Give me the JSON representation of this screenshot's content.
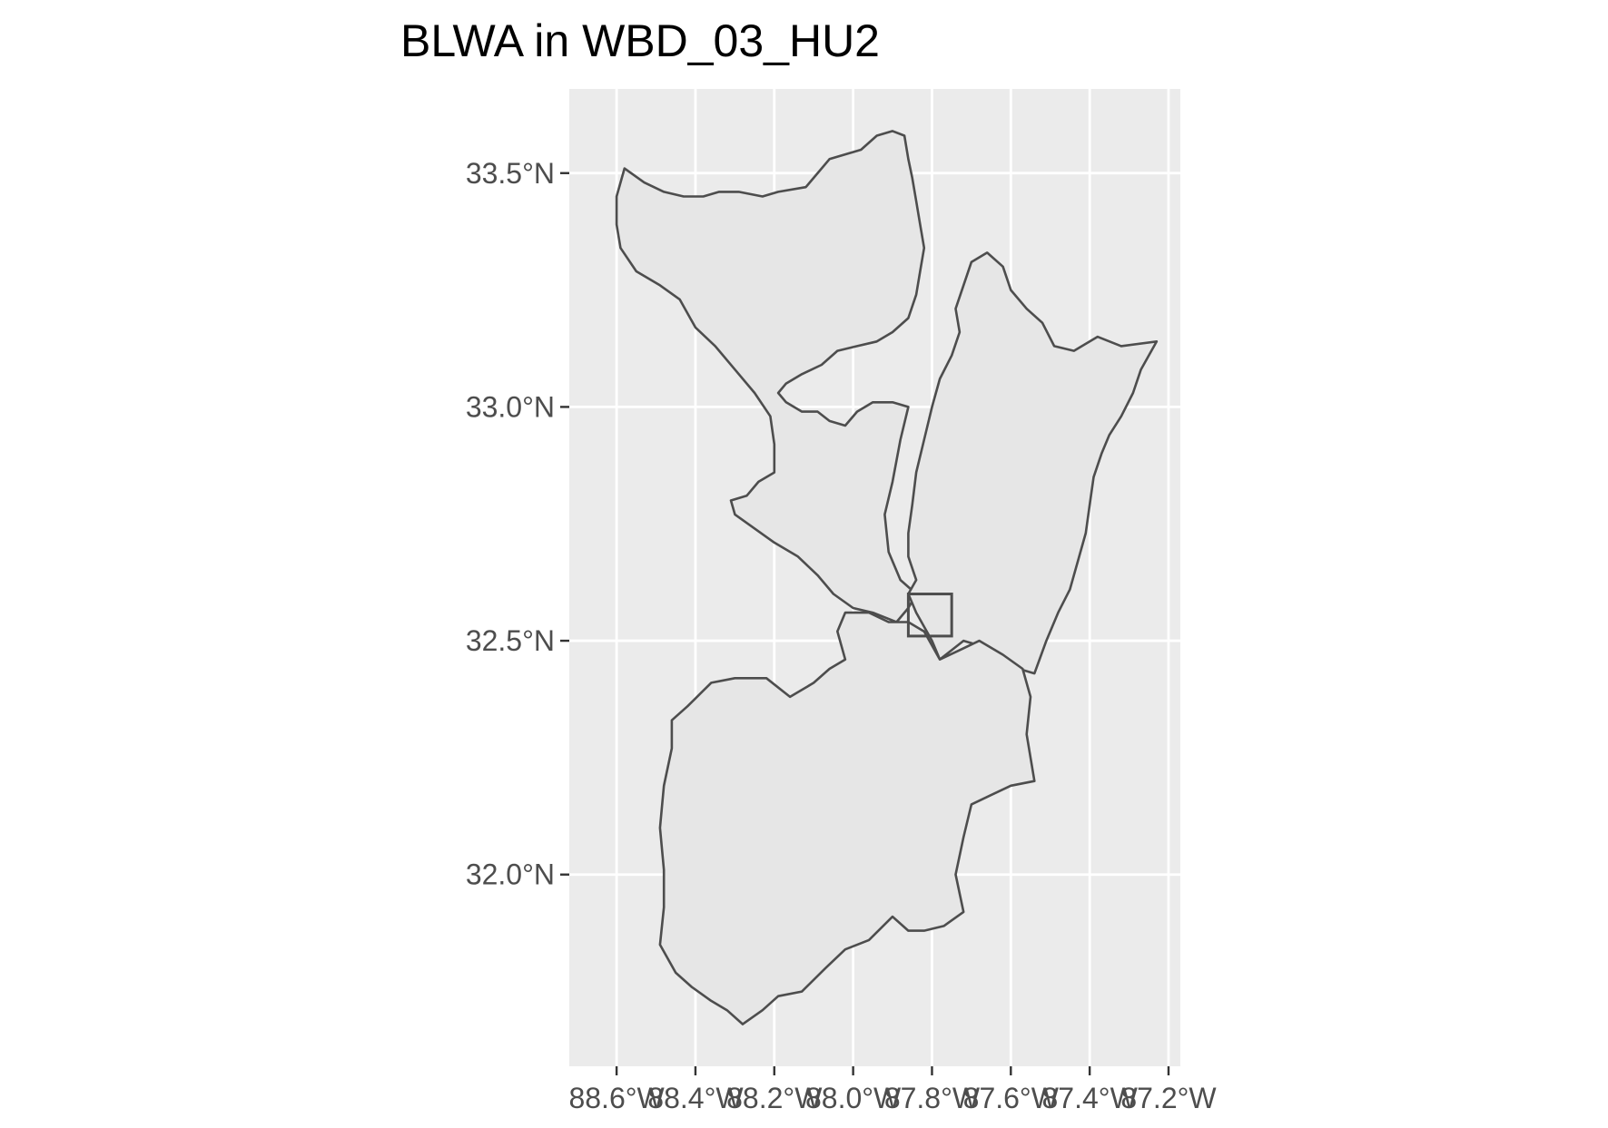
{
  "title": "BLWA in WBD_03_HU2",
  "colors": {
    "panel_background": "#ebebeb",
    "grid": "#ffffff",
    "polygon_fill": "#e6e6e6",
    "polygon_stroke": "#4d4d4d",
    "tick_text": "#4d4d4d",
    "title_text": "#000000"
  },
  "axes": {
    "x": {
      "range": [
        -88.72,
        -87.17
      ],
      "ticks": [
        {
          "value": -88.6,
          "label": "88.6°W"
        },
        {
          "value": -88.4,
          "label": "88.4°W"
        },
        {
          "value": -88.2,
          "label": "88.2°W"
        },
        {
          "value": -88.0,
          "label": "88.0°W"
        },
        {
          "value": -87.8,
          "label": "87.8°W"
        },
        {
          "value": -87.6,
          "label": "87.6°W"
        },
        {
          "value": -87.4,
          "label": "87.4°W"
        },
        {
          "value": -87.2,
          "label": "87.2°W"
        }
      ]
    },
    "y": {
      "range": [
        31.59,
        33.68
      ],
      "ticks": [
        {
          "value": 32.0,
          "label": "32.0°N"
        },
        {
          "value": 32.5,
          "label": "32.5°N"
        },
        {
          "value": 33.0,
          "label": "33.0°N"
        },
        {
          "value": 33.5,
          "label": "33.5°N"
        }
      ]
    }
  },
  "map_data": {
    "type": "watershed-boundary-map",
    "watersheds": [
      {
        "id": "northwest",
        "coords": [
          [
            -88.58,
            33.51
          ],
          [
            -88.53,
            33.48
          ],
          [
            -88.48,
            33.46
          ],
          [
            -88.43,
            33.45
          ],
          [
            -88.38,
            33.45
          ],
          [
            -88.34,
            33.46
          ],
          [
            -88.29,
            33.46
          ],
          [
            -88.23,
            33.45
          ],
          [
            -88.19,
            33.46
          ],
          [
            -88.12,
            33.47
          ],
          [
            -88.06,
            33.53
          ],
          [
            -87.98,
            33.55
          ],
          [
            -87.94,
            33.58
          ],
          [
            -87.9,
            33.59
          ],
          [
            -87.87,
            33.58
          ],
          [
            -87.86,
            33.53
          ],
          [
            -87.85,
            33.49
          ],
          [
            -87.84,
            33.44
          ],
          [
            -87.83,
            33.39
          ],
          [
            -87.82,
            33.34
          ],
          [
            -87.83,
            33.29
          ],
          [
            -87.84,
            33.24
          ],
          [
            -87.86,
            33.19
          ],
          [
            -87.9,
            33.16
          ],
          [
            -87.94,
            33.14
          ],
          [
            -87.99,
            33.13
          ],
          [
            -88.04,
            33.12
          ],
          [
            -88.08,
            33.09
          ],
          [
            -88.13,
            33.07
          ],
          [
            -88.17,
            33.05
          ],
          [
            -88.19,
            33.03
          ],
          [
            -88.17,
            33.01
          ],
          [
            -88.13,
            32.99
          ],
          [
            -88.09,
            32.99
          ],
          [
            -88.06,
            32.97
          ],
          [
            -88.02,
            32.96
          ],
          [
            -87.99,
            32.99
          ],
          [
            -87.95,
            33.01
          ],
          [
            -87.9,
            33.01
          ],
          [
            -87.86,
            33.0
          ],
          [
            -87.88,
            32.93
          ],
          [
            -87.9,
            32.84
          ],
          [
            -87.92,
            32.77
          ],
          [
            -87.91,
            32.69
          ],
          [
            -87.88,
            32.63
          ],
          [
            -87.84,
            32.6
          ],
          [
            -87.86,
            32.57
          ],
          [
            -87.89,
            32.54
          ],
          [
            -87.95,
            32.56
          ],
          [
            -88.0,
            32.57
          ],
          [
            -88.05,
            32.6
          ],
          [
            -88.09,
            32.64
          ],
          [
            -88.14,
            32.68
          ],
          [
            -88.2,
            32.71
          ],
          [
            -88.25,
            32.74
          ],
          [
            -88.3,
            32.77
          ],
          [
            -88.31,
            32.8
          ],
          [
            -88.27,
            32.81
          ],
          [
            -88.24,
            32.84
          ],
          [
            -88.2,
            32.86
          ],
          [
            -88.2,
            32.92
          ],
          [
            -88.21,
            32.98
          ],
          [
            -88.25,
            33.03
          ],
          [
            -88.3,
            33.08
          ],
          [
            -88.35,
            33.13
          ],
          [
            -88.4,
            33.17
          ],
          [
            -88.44,
            33.23
          ],
          [
            -88.49,
            33.26
          ],
          [
            -88.55,
            33.29
          ],
          [
            -88.59,
            33.34
          ],
          [
            -88.6,
            33.39
          ],
          [
            -88.6,
            33.45
          ],
          [
            -88.58,
            33.51
          ]
        ]
      },
      {
        "id": "northeast",
        "coords": [
          [
            -87.86,
            32.6
          ],
          [
            -87.84,
            32.63
          ],
          [
            -87.86,
            32.68
          ],
          [
            -87.86,
            32.73
          ],
          [
            -87.85,
            32.79
          ],
          [
            -87.84,
            32.86
          ],
          [
            -87.82,
            32.93
          ],
          [
            -87.8,
            33.0
          ],
          [
            -87.78,
            33.06
          ],
          [
            -87.75,
            33.11
          ],
          [
            -87.73,
            33.16
          ],
          [
            -87.74,
            33.21
          ],
          [
            -87.72,
            33.26
          ],
          [
            -87.7,
            33.31
          ],
          [
            -87.66,
            33.33
          ],
          [
            -87.62,
            33.3
          ],
          [
            -87.6,
            33.25
          ],
          [
            -87.56,
            33.21
          ],
          [
            -87.52,
            33.18
          ],
          [
            -87.49,
            33.13
          ],
          [
            -87.44,
            33.12
          ],
          [
            -87.38,
            33.15
          ],
          [
            -87.32,
            33.13
          ],
          [
            -87.23,
            33.14
          ],
          [
            -87.27,
            33.08
          ],
          [
            -87.29,
            33.03
          ],
          [
            -87.32,
            32.98
          ],
          [
            -87.35,
            32.94
          ],
          [
            -87.37,
            32.9
          ],
          [
            -87.39,
            32.85
          ],
          [
            -87.4,
            32.79
          ],
          [
            -87.41,
            32.73
          ],
          [
            -87.43,
            32.67
          ],
          [
            -87.45,
            32.61
          ],
          [
            -87.48,
            32.56
          ],
          [
            -87.51,
            32.5
          ],
          [
            -87.54,
            32.43
          ],
          [
            -87.58,
            32.44
          ],
          [
            -87.63,
            32.47
          ],
          [
            -87.68,
            32.49
          ],
          [
            -87.72,
            32.5
          ],
          [
            -87.75,
            32.48
          ],
          [
            -87.78,
            32.46
          ],
          [
            -87.8,
            32.5
          ],
          [
            -87.82,
            32.53
          ],
          [
            -87.84,
            32.56
          ],
          [
            -87.86,
            32.6
          ]
        ]
      },
      {
        "id": "south",
        "coords": [
          [
            -88.02,
            32.56
          ],
          [
            -87.96,
            32.56
          ],
          [
            -87.91,
            32.54
          ],
          [
            -87.86,
            32.54
          ],
          [
            -87.82,
            32.52
          ],
          [
            -87.78,
            32.46
          ],
          [
            -87.73,
            32.48
          ],
          [
            -87.68,
            32.5
          ],
          [
            -87.62,
            32.47
          ],
          [
            -87.57,
            32.44
          ],
          [
            -87.55,
            32.38
          ],
          [
            -87.56,
            32.3
          ],
          [
            -87.54,
            32.2
          ],
          [
            -87.6,
            32.19
          ],
          [
            -87.65,
            32.17
          ],
          [
            -87.7,
            32.15
          ],
          [
            -87.72,
            32.08
          ],
          [
            -87.74,
            32.0
          ],
          [
            -87.72,
            31.92
          ],
          [
            -87.77,
            31.89
          ],
          [
            -87.82,
            31.88
          ],
          [
            -87.86,
            31.88
          ],
          [
            -87.9,
            31.91
          ],
          [
            -87.96,
            31.86
          ],
          [
            -88.02,
            31.84
          ],
          [
            -88.07,
            31.8
          ],
          [
            -88.13,
            31.75
          ],
          [
            -88.19,
            31.74
          ],
          [
            -88.23,
            31.71
          ],
          [
            -88.28,
            31.68
          ],
          [
            -88.32,
            31.71
          ],
          [
            -88.36,
            31.73
          ],
          [
            -88.41,
            31.76
          ],
          [
            -88.45,
            31.79
          ],
          [
            -88.49,
            31.85
          ],
          [
            -88.48,
            31.93
          ],
          [
            -88.48,
            32.01
          ],
          [
            -88.49,
            32.1
          ],
          [
            -88.48,
            32.19
          ],
          [
            -88.46,
            32.27
          ],
          [
            -88.46,
            32.33
          ],
          [
            -88.42,
            32.36
          ],
          [
            -88.36,
            32.41
          ],
          [
            -88.3,
            32.42
          ],
          [
            -88.22,
            32.42
          ],
          [
            -88.16,
            32.38
          ],
          [
            -88.1,
            32.41
          ],
          [
            -88.06,
            32.44
          ],
          [
            -88.02,
            32.46
          ],
          [
            -88.04,
            32.52
          ],
          [
            -88.02,
            32.56
          ]
        ]
      }
    ],
    "site_box": {
      "lon_min": -87.86,
      "lon_max": -87.75,
      "lat_min": 32.51,
      "lat_max": 32.6
    }
  }
}
